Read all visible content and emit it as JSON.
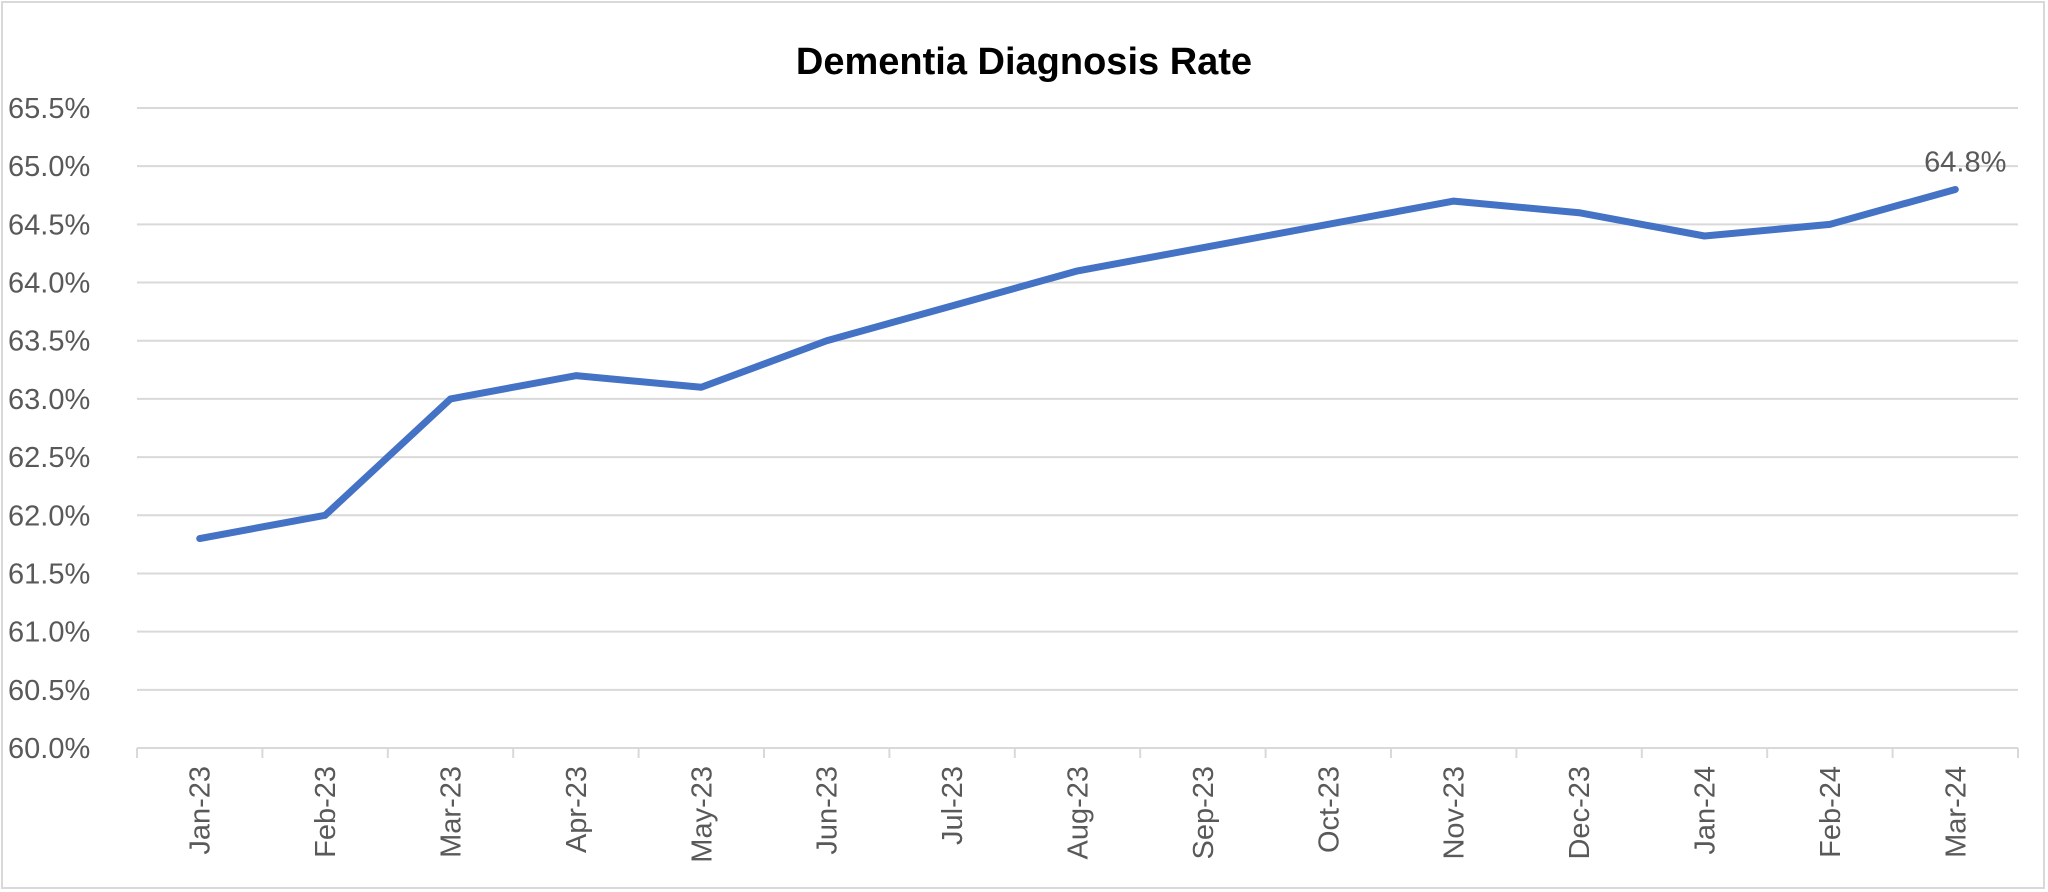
{
  "chart_data": {
    "type": "line",
    "title": "Dementia Diagnosis Rate",
    "xlabel": "",
    "ylabel": "",
    "categories": [
      "Jan-23",
      "Feb-23",
      "Mar-23",
      "Apr-23",
      "May-23",
      "Jun-23",
      "Jul-23",
      "Aug-23",
      "Sep-23",
      "Oct-23",
      "Nov-23",
      "Dec-23",
      "Jan-24",
      "Feb-24",
      "Mar-24"
    ],
    "series": [
      {
        "values": [
          61.8,
          62.0,
          63.0,
          63.2,
          63.1,
          63.5,
          63.8,
          64.1,
          64.3,
          64.5,
          64.7,
          64.6,
          64.4,
          64.5,
          64.8
        ],
        "color": "#4472c4"
      }
    ],
    "ylim": [
      60.0,
      65.5
    ],
    "yticks": [
      "60.0%",
      "60.5%",
      "61.0%",
      "61.5%",
      "62.0%",
      "62.5%",
      "63.0%",
      "63.5%",
      "64.0%",
      "64.5%",
      "65.0%",
      "65.5%"
    ],
    "data_labels": [
      {
        "index": 14,
        "text": "64.8%"
      }
    ],
    "grid": true,
    "legend": "none",
    "colors": {
      "line": "#4472c4",
      "grid": "#d9d9d9",
      "tick_text": "#595959"
    }
  }
}
